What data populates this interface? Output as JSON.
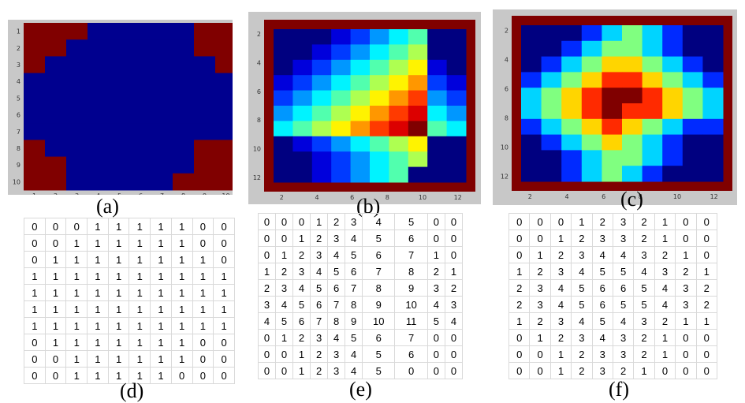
{
  "panels": [
    {
      "id": "a",
      "label": "(a)",
      "xticks": [
        "1",
        "2",
        "3",
        "4",
        "5",
        "6",
        "7",
        "8",
        "9",
        "10"
      ],
      "yticks": [
        "1",
        "2",
        "3",
        "4",
        "5",
        "6",
        "7",
        "8",
        "9",
        "10"
      ]
    },
    {
      "id": "b",
      "label": "(b)",
      "xticks": [
        "2",
        "4",
        "6",
        "8",
        "10",
        "12"
      ],
      "yticks": [
        "2",
        "4",
        "6",
        "8",
        "10",
        "12"
      ]
    },
    {
      "id": "c",
      "label": "(c)",
      "xticks": [
        "2",
        "4",
        "6",
        "8",
        "10",
        "12"
      ],
      "yticks": [
        "2",
        "4",
        "6",
        "8",
        "10",
        "12"
      ]
    }
  ],
  "tables": [
    {
      "id": "d",
      "label": "(d)",
      "rows": [
        [
          0,
          0,
          0,
          1,
          1,
          1,
          1,
          1,
          0,
          0
        ],
        [
          0,
          0,
          1,
          1,
          1,
          1,
          1,
          1,
          0,
          0
        ],
        [
          0,
          1,
          1,
          1,
          1,
          1,
          1,
          1,
          1,
          0
        ],
        [
          1,
          1,
          1,
          1,
          1,
          1,
          1,
          1,
          1,
          1
        ],
        [
          1,
          1,
          1,
          1,
          1,
          1,
          1,
          1,
          1,
          1
        ],
        [
          1,
          1,
          1,
          1,
          1,
          1,
          1,
          1,
          1,
          1
        ],
        [
          1,
          1,
          1,
          1,
          1,
          1,
          1,
          1,
          1,
          1
        ],
        [
          0,
          1,
          1,
          1,
          1,
          1,
          1,
          1,
          0,
          0
        ],
        [
          0,
          0,
          1,
          1,
          1,
          1,
          1,
          1,
          0,
          0
        ],
        [
          0,
          0,
          1,
          1,
          1,
          1,
          1,
          0,
          0,
          0
        ]
      ]
    },
    {
      "id": "e",
      "label": "(e)",
      "rows": [
        [
          0,
          0,
          0,
          1,
          2,
          3,
          4,
          5,
          0,
          0
        ],
        [
          0,
          0,
          1,
          2,
          3,
          4,
          5,
          6,
          0,
          0
        ],
        [
          0,
          1,
          2,
          3,
          4,
          5,
          6,
          7,
          1,
          0
        ],
        [
          1,
          2,
          3,
          4,
          5,
          6,
          7,
          8,
          2,
          1
        ],
        [
          2,
          3,
          4,
          5,
          6,
          7,
          8,
          9,
          3,
          2
        ],
        [
          3,
          4,
          5,
          6,
          7,
          8,
          9,
          10,
          4,
          3
        ],
        [
          4,
          5,
          6,
          7,
          8,
          9,
          10,
          11,
          5,
          4
        ],
        [
          0,
          1,
          2,
          3,
          4,
          5,
          6,
          7,
          0,
          0
        ],
        [
          0,
          0,
          1,
          2,
          3,
          4,
          5,
          6,
          0,
          0
        ],
        [
          0,
          0,
          1,
          2,
          3,
          4,
          5,
          0,
          0,
          0
        ]
      ]
    },
    {
      "id": "f",
      "label": "(f)",
      "rows": [
        [
          0,
          0,
          0,
          1,
          2,
          3,
          2,
          1,
          0,
          0
        ],
        [
          0,
          0,
          1,
          2,
          3,
          3,
          2,
          1,
          0,
          0
        ],
        [
          0,
          1,
          2,
          3,
          4,
          4,
          3,
          2,
          1,
          0
        ],
        [
          1,
          2,
          3,
          4,
          5,
          5,
          4,
          3,
          2,
          1
        ],
        [
          2,
          3,
          4,
          5,
          6,
          6,
          5,
          4,
          3,
          2
        ],
        [
          2,
          3,
          4,
          5,
          6,
          5,
          5,
          4,
          3,
          2
        ],
        [
          1,
          2,
          3,
          4,
          5,
          4,
          3,
          2,
          1,
          1
        ],
        [
          0,
          1,
          2,
          3,
          4,
          3,
          2,
          1,
          0,
          0
        ],
        [
          0,
          0,
          1,
          2,
          3,
          3,
          2,
          1,
          0,
          0
        ],
        [
          0,
          0,
          1,
          2,
          3,
          2,
          1,
          0,
          0,
          0
        ]
      ]
    }
  ],
  "colors": {
    "background_value": "#800000",
    "colormap": "jet",
    "zero_cell": "#00008f"
  }
}
